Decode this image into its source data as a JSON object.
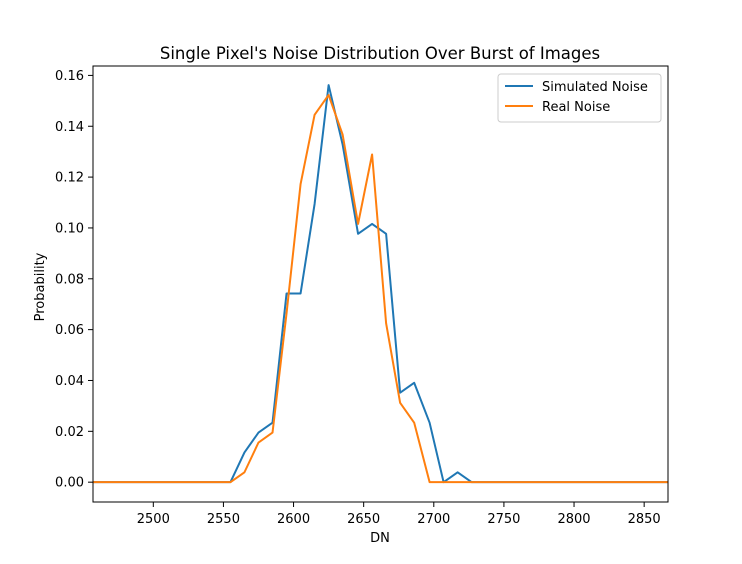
{
  "chart_data": {
    "type": "line",
    "title": "Single Pixel's Noise Distribution Over Burst of Images",
    "xlabel": "DN",
    "ylabel": "Probability",
    "xlim": [
      2457,
      2867
    ],
    "ylim": [
      -0.0078,
      0.1637
    ],
    "x_ticks": [
      2500,
      2550,
      2600,
      2650,
      2700,
      2750,
      2800,
      2850
    ],
    "x_tick_labels": [
      "2500",
      "2550",
      "2600",
      "2650",
      "2700",
      "2750",
      "2800",
      "2850"
    ],
    "y_ticks": [
      0.0,
      0.02,
      0.04,
      0.06,
      0.08,
      0.1,
      0.12,
      0.14,
      0.16
    ],
    "y_tick_labels": [
      "0.00",
      "0.02",
      "0.04",
      "0.06",
      "0.08",
      "0.10",
      "0.12",
      "0.14",
      "0.16"
    ],
    "grid": false,
    "legend_position": "top-right",
    "series": [
      {
        "name": "Simulated Noise",
        "color": "#1f77b4",
        "x": [
          2457,
          2555,
          2565,
          2575,
          2585,
          2595,
          2605,
          2615,
          2625,
          2635,
          2646,
          2656,
          2666,
          2676,
          2686,
          2697,
          2707,
          2717,
          2727,
          2867
        ],
        "y": [
          0.0,
          0.0,
          0.0117,
          0.0195,
          0.0234,
          0.0742,
          0.0742,
          0.1094,
          0.1562,
          0.1328,
          0.0977,
          0.1016,
          0.0977,
          0.0352,
          0.0391,
          0.0234,
          0.0,
          0.0039,
          0.0,
          0.0
        ]
      },
      {
        "name": "Real Noise",
        "color": "#ff7f0e",
        "x": [
          2457,
          2555,
          2565,
          2575,
          2585,
          2595,
          2605,
          2615,
          2625,
          2635,
          2646,
          2656,
          2666,
          2676,
          2686,
          2697,
          2707,
          2717,
          2727,
          2867
        ],
        "y": [
          0.0,
          0.0,
          0.0039,
          0.0156,
          0.0195,
          0.0664,
          0.1172,
          0.1445,
          0.1523,
          0.1367,
          0.1016,
          0.1289,
          0.0625,
          0.0312,
          0.0234,
          0.0,
          0.0,
          0.0,
          0.0,
          0.0
        ]
      }
    ]
  }
}
